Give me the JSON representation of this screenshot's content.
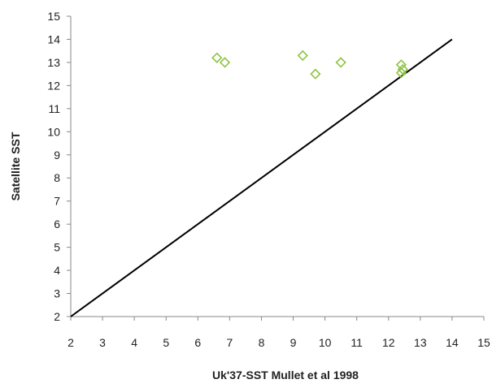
{
  "chart_data": {
    "type": "scatter",
    "title": "",
    "xlabel": "Uk'37-SST  Mullet et al 1998",
    "ylabel": "Satellite SST",
    "xlim": [
      2,
      15
    ],
    "ylim": [
      2,
      15
    ],
    "x_ticks": [
      "2",
      "3",
      "4",
      "5",
      "6",
      "7",
      "8",
      "9",
      "10",
      "11",
      "12",
      "13",
      "14",
      "15"
    ],
    "y_ticks": [
      "2",
      "3",
      "4",
      "5",
      "6",
      "7",
      "8",
      "9",
      "10",
      "11",
      "12",
      "13",
      "14",
      "15"
    ],
    "grid": false,
    "legend": "none",
    "series": [
      {
        "marker": "diamond-open",
        "color": "#8cc43f",
        "points": [
          {
            "x": 6.6,
            "y": 13.2
          },
          {
            "x": 6.85,
            "y": 13.0
          },
          {
            "x": 9.3,
            "y": 13.3
          },
          {
            "x": 9.7,
            "y": 12.5
          },
          {
            "x": 10.5,
            "y": 13.0
          },
          {
            "x": 12.4,
            "y": 12.9
          },
          {
            "x": 12.45,
            "y": 12.7
          },
          {
            "x": 12.4,
            "y": 12.55
          }
        ]
      }
    ],
    "reference_line": {
      "from": [
        2,
        2
      ],
      "to": [
        14,
        14
      ],
      "color": "#000000"
    },
    "axis_color": "#888888",
    "text_color": "#222222"
  }
}
